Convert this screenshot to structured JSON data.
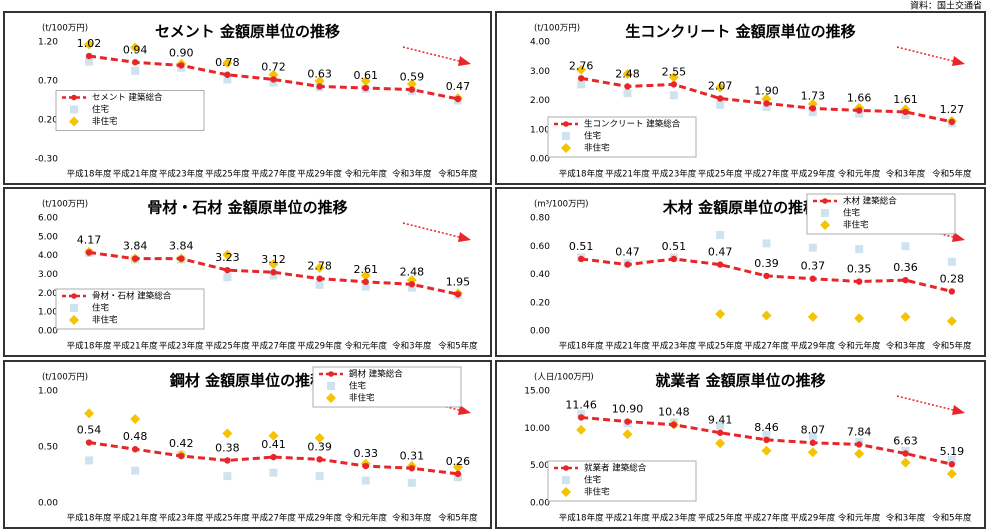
{
  "source": "資料：国土交通省",
  "chart_data": [
    {
      "type": "line",
      "title": "セメント 金額原単位の推移",
      "y_unit": "(t/100万円)",
      "legend": "center left",
      "categories": [
        "平成18年度",
        "平成21年度",
        "平成23年度",
        "平成25年度",
        "平成27年度",
        "平成29年度",
        "令和元年度",
        "令和3年度",
        "令和5年度"
      ],
      "ylim": [
        -0.3,
        1.2
      ],
      "yticks": [
        {
          "value": -0.3,
          "label": "-0.30"
        },
        {
          "value": 0.2,
          "label": "0.20"
        },
        {
          "value": 0.7,
          "label": "0.70"
        },
        {
          "value": 1.2,
          "label": "1.20"
        }
      ],
      "series": [
        {
          "name": "セメント 建築総合",
          "color": "#e8262a",
          "values": [
            1.02,
            0.94,
            0.9,
            0.78,
            0.72,
            0.63,
            0.61,
            0.59,
            0.47
          ],
          "value_labels": [
            "1.02",
            "0.94",
            "0.90",
            "0.78",
            "0.72",
            "0.63",
            "0.61",
            "0.59",
            "0.47"
          ]
        },
        {
          "name": "住宅",
          "color": "#cfe3ee",
          "values": [
            0.95,
            0.83,
            0.87,
            0.72,
            0.68,
            0.62,
            0.6,
            0.57,
            0.45
          ]
        },
        {
          "name": "非住宅",
          "color": "#f5c400",
          "values": [
            1.17,
            1.13,
            0.92,
            0.93,
            0.78,
            0.7,
            0.7,
            0.66,
            0.48
          ]
        }
      ]
    },
    {
      "type": "line",
      "title": "生コンクリート 金額原単位の推移",
      "y_unit": "(t/100万円)",
      "legend": "lower left",
      "categories": [
        "平成18年度",
        "平成21年度",
        "平成23年度",
        "平成25年度",
        "平成27年度",
        "平成29年度",
        "令和元年度",
        "令和3年度",
        "令和5年度"
      ],
      "ylim": [
        0,
        4
      ],
      "yticks": [
        {
          "value": 0,
          "label": "0.00"
        },
        {
          "value": 1,
          "label": "1.00"
        },
        {
          "value": 2,
          "label": "2.00"
        },
        {
          "value": 3,
          "label": "3.00"
        },
        {
          "value": 4,
          "label": "4.00"
        }
      ],
      "series": [
        {
          "name": "生コンクリート 建築総合",
          "color": "#e8262a",
          "values": [
            2.76,
            2.48,
            2.55,
            2.07,
            1.9,
            1.73,
            1.66,
            1.61,
            1.27
          ],
          "value_labels": [
            "2.76",
            "2.48",
            "2.55",
            "2.07",
            "1.90",
            "1.73",
            "1.66",
            "1.61",
            "1.27"
          ]
        },
        {
          "name": "住宅",
          "color": "#cfe3ee",
          "values": [
            2.55,
            2.25,
            2.18,
            1.85,
            1.78,
            1.6,
            1.55,
            1.5,
            1.22
          ]
        },
        {
          "name": "非住宅",
          "color": "#f5c400",
          "values": [
            3.05,
            2.9,
            2.8,
            2.45,
            2.05,
            1.88,
            1.75,
            1.7,
            1.3
          ]
        }
      ]
    },
    {
      "type": "line",
      "title": "骨材・石材 金額原単位の推移",
      "y_unit": "(t/100万円)",
      "legend": "lower left",
      "categories": [
        "平成18年度",
        "平成21年度",
        "平成23年度",
        "平成25年度",
        "平成27年度",
        "平成29年度",
        "令和元年度",
        "令和3年度",
        "令和5年度"
      ],
      "ylim": [
        0,
        6
      ],
      "yticks": [
        {
          "value": 0,
          "label": "0.00"
        },
        {
          "value": 1,
          "label": "1.00"
        },
        {
          "value": 2,
          "label": "2.00"
        },
        {
          "value": 3,
          "label": "3.00"
        },
        {
          "value": 4,
          "label": "4.00"
        },
        {
          "value": 5,
          "label": "5.00"
        },
        {
          "value": 6,
          "label": "6.00"
        }
      ],
      "series": [
        {
          "name": "骨材・石材 建築総合",
          "color": "#e8262a",
          "values": [
            4.17,
            3.84,
            3.84,
            3.23,
            3.12,
            2.78,
            2.61,
            2.48,
            1.95
          ],
          "value_labels": [
            "4.17",
            "3.84",
            "3.84",
            "3.23",
            "3.12",
            "2.78",
            "2.61",
            "2.48",
            "1.95"
          ]
        },
        {
          "name": "住宅",
          "color": "#cfe3ee",
          "values": [
            4.15,
            3.8,
            3.8,
            2.85,
            2.95,
            2.45,
            2.35,
            2.3,
            1.9
          ]
        },
        {
          "name": "非住宅",
          "color": "#f5c400",
          "values": [
            4.2,
            3.85,
            3.85,
            4.05,
            3.55,
            3.35,
            2.95,
            2.7,
            2.0
          ]
        }
      ]
    },
    {
      "type": "line",
      "title": "木材 金額原単位の推移",
      "y_unit": "(m³/100万円)",
      "legend": "upper right",
      "categories": [
        "平成18年度",
        "平成21年度",
        "平成23年度",
        "平成25年度",
        "平成27年度",
        "平成29年度",
        "令和元年度",
        "令和3年度",
        "令和5年度"
      ],
      "ylim": [
        0,
        0.8
      ],
      "yticks": [
        {
          "value": 0,
          "label": "0.00"
        },
        {
          "value": 0.2,
          "label": "0.20"
        },
        {
          "value": 0.4,
          "label": "0.40"
        },
        {
          "value": 0.6,
          "label": "0.60"
        },
        {
          "value": 0.8,
          "label": "0.80"
        }
      ],
      "series": [
        {
          "name": "木材 建築総合",
          "color": "#e8262a",
          "values": [
            0.51,
            0.47,
            0.51,
            0.47,
            0.39,
            0.37,
            0.35,
            0.36,
            0.28
          ],
          "value_labels": [
            "0.51",
            "0.47",
            "0.51",
            "0.47",
            "0.39",
            "0.37",
            "0.35",
            "0.36",
            "0.28"
          ]
        },
        {
          "name": "住宅",
          "color": "#cfe3ee",
          "values": [
            0.52,
            0.48,
            0.52,
            0.68,
            0.62,
            0.59,
            0.58,
            0.6,
            0.49
          ]
        },
        {
          "name": "非住宅",
          "color": "#f5c400",
          "values": [
            null,
            null,
            null,
            0.12,
            0.11,
            0.1,
            0.09,
            0.1,
            0.07
          ]
        }
      ]
    },
    {
      "type": "line",
      "title": "鋼材 金額原単位の推移",
      "y_unit": "(t/100万円)",
      "legend": "upper right",
      "categories": [
        "平成18年度",
        "平成21年度",
        "平成23年度",
        "平成25年度",
        "平成27年度",
        "平成29年度",
        "令和元年度",
        "令和3年度",
        "令和5年度"
      ],
      "ylim": [
        0,
        1
      ],
      "yticks": [
        {
          "value": 0,
          "label": "0.00"
        },
        {
          "value": 0.5,
          "label": "0.50"
        },
        {
          "value": 1,
          "label": "1.00"
        }
      ],
      "series": [
        {
          "name": "鋼材 建築総合",
          "color": "#e8262a",
          "values": [
            0.54,
            0.48,
            0.42,
            0.38,
            0.41,
            0.39,
            0.33,
            0.31,
            0.26
          ],
          "value_labels": [
            "0.54",
            "0.48",
            "0.42",
            "0.38",
            "0.41",
            "0.39",
            "0.33",
            "0.31",
            "0.26"
          ]
        },
        {
          "name": "住宅",
          "color": "#cfe3ee",
          "values": [
            0.38,
            0.29,
            0.43,
            0.24,
            0.27,
            0.24,
            0.2,
            0.18,
            0.23
          ]
        },
        {
          "name": "非住宅",
          "color": "#f5c400",
          "values": [
            0.8,
            0.75,
            0.43,
            0.62,
            0.6,
            0.58,
            0.35,
            0.33,
            0.32
          ]
        }
      ]
    },
    {
      "type": "line",
      "title": "就業者 金額原単位の推移",
      "y_unit": "(人日/100万円)",
      "legend": "lower left",
      "categories": [
        "平成18年度",
        "平成21年度",
        "平成23年度",
        "平成25年度",
        "平成27年度",
        "平成29年度",
        "令和元年度",
        "令和3年度",
        "令和5年度"
      ],
      "ylim": [
        0,
        15
      ],
      "yticks": [
        {
          "value": 0,
          "label": "0.00"
        },
        {
          "value": 5,
          "label": "5.00"
        },
        {
          "value": 10,
          "label": "10.00"
        },
        {
          "value": 15,
          "label": "15.00"
        }
      ],
      "series": [
        {
          "name": "就業者 建築総合",
          "color": "#e8262a",
          "values": [
            11.46,
            10.9,
            10.48,
            9.41,
            8.46,
            8.07,
            7.84,
            6.63,
            5.19
          ],
          "value_labels": [
            "11.46",
            "10.90",
            "10.48",
            "9.41",
            "8.46",
            "8.07",
            "7.84",
            "6.63",
            "5.19"
          ]
        },
        {
          "name": "住宅",
          "color": "#cfe3ee",
          "values": [
            11.9,
            10.7,
            10.8,
            10.4,
            9.1,
            9.0,
            8.2,
            7.0,
            5.8
          ]
        },
        {
          "name": "非住宅",
          "color": "#f5c400",
          "values": [
            9.8,
            9.2,
            10.5,
            8.0,
            7.0,
            6.8,
            6.6,
            5.4,
            3.9
          ]
        }
      ]
    }
  ]
}
